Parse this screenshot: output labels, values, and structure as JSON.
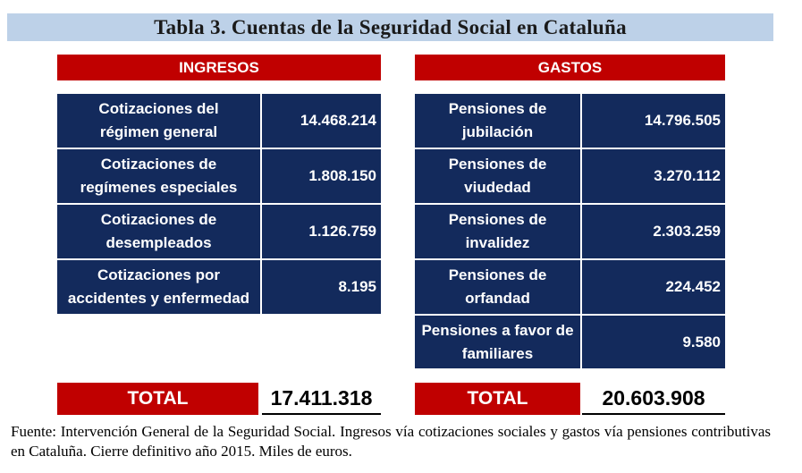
{
  "title": "Tabla 3. Cuentas de la Seguridad Social en Cataluña",
  "ingresos": {
    "header": "INGRESOS",
    "rows": [
      {
        "label_l1": "Cotizaciones del",
        "label_l2": "régimen general",
        "value": "14.468.214"
      },
      {
        "label_l1": "Cotizaciones de",
        "label_l2": "regímenes especiales",
        "value": "1.808.150"
      },
      {
        "label_l1": "Cotizaciones de",
        "label_l2": "desempleados",
        "value": "1.126.759"
      },
      {
        "label_l1": "Cotizaciones por",
        "label_l2": "accidentes y enfermedad",
        "value": "8.195"
      }
    ],
    "total_label": "TOTAL",
    "total_value": "17.411.318"
  },
  "gastos": {
    "header": "GASTOS",
    "rows": [
      {
        "label_l1": "Pensiones de",
        "label_l2": "jubilación",
        "value": "14.796.505"
      },
      {
        "label_l1": "Pensiones de",
        "label_l2": "viudedad",
        "value": "3.270.112"
      },
      {
        "label_l1": "Pensiones de",
        "label_l2": "invalidez",
        "value": "2.303.259"
      },
      {
        "label_l1": "Pensiones de",
        "label_l2": "orfandad",
        "value": "224.452"
      },
      {
        "label_l1": "Pensiones a favor de",
        "label_l2": "familiares",
        "value": "9.580"
      }
    ],
    "total_label": "TOTAL",
    "total_value": "20.603.908"
  },
  "footnote": "Fuente: Intervención General de la Seguridad Social. Ingresos vía cotizaciones sociales y gastos vía pensiones contributivas en Cataluña. Cierre definitivo año 2015. Miles de euros."
}
